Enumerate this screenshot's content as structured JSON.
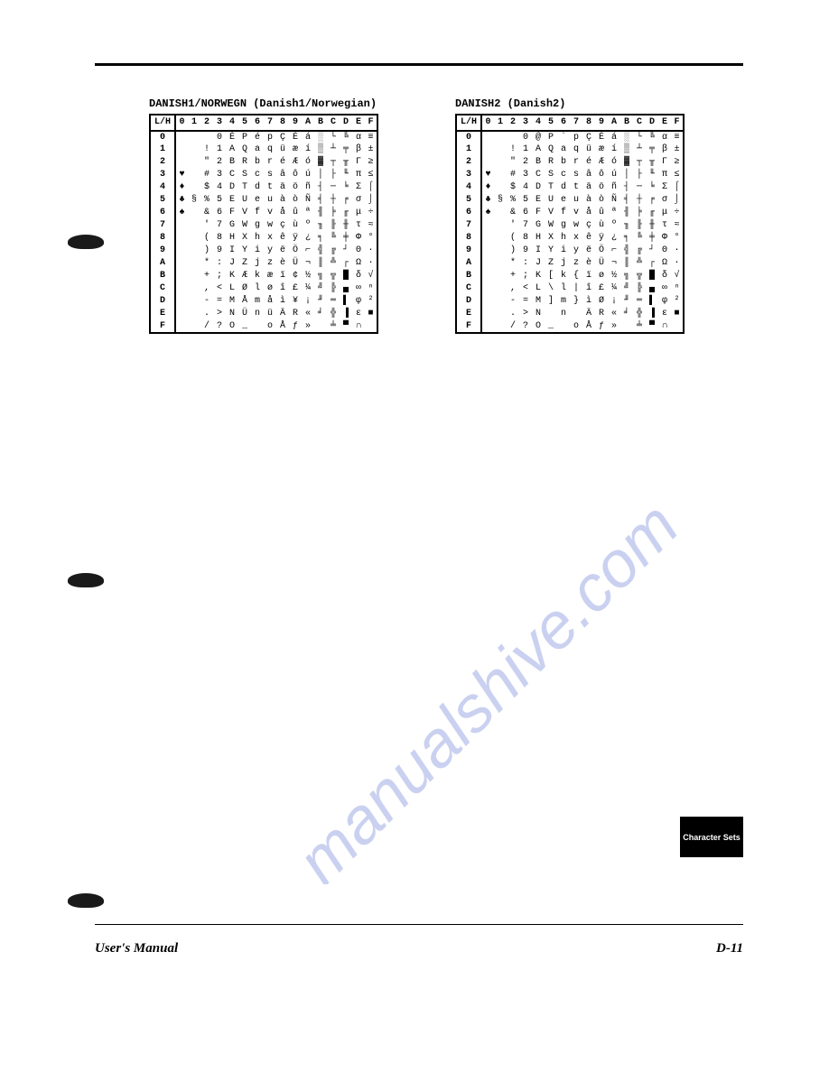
{
  "page": {
    "footer_left": "User's Manual",
    "footer_right": "D-11",
    "side_tab": "Character Sets",
    "watermark_text": "manualshive.com"
  },
  "charset1": {
    "title": "DANISH1/NORWEGN (Danish1/Norwegian)",
    "lh_label": "L/H",
    "cols": [
      "0",
      "1",
      "2",
      "3",
      "4",
      "5",
      "6",
      "7",
      "8",
      "9",
      "A",
      "B",
      "C",
      "D",
      "E",
      "F"
    ],
    "rows": [
      "0",
      "1",
      "2",
      "3",
      "4",
      "5",
      "6",
      "7",
      "8",
      "9",
      "A",
      "B",
      "C",
      "D",
      "E",
      "F"
    ],
    "grid": [
      [
        " ",
        " ",
        " ",
        "0",
        "É",
        "P",
        "é",
        "p",
        "Ç",
        "É",
        "á",
        "░",
        "└",
        "╚",
        "α",
        "≡"
      ],
      [
        " ",
        " ",
        "!",
        "1",
        "A",
        "Q",
        "a",
        "q",
        "ü",
        "æ",
        "í",
        "▒",
        "┴",
        "╤",
        "β",
        "±"
      ],
      [
        " ",
        " ",
        "\"",
        "2",
        "B",
        "R",
        "b",
        "r",
        "é",
        "Æ",
        "ó",
        "▓",
        "┬",
        "╥",
        "Γ",
        "≥"
      ],
      [
        "♥",
        " ",
        "#",
        "3",
        "C",
        "S",
        "c",
        "s",
        "â",
        "ô",
        "ú",
        "│",
        "├",
        "╙",
        "π",
        "≤"
      ],
      [
        "♦",
        " ",
        "$",
        "4",
        "D",
        "T",
        "d",
        "t",
        "ä",
        "ö",
        "ñ",
        "┤",
        "─",
        "╘",
        "Σ",
        "⌠"
      ],
      [
        "♣",
        "§",
        "%",
        "5",
        "E",
        "U",
        "e",
        "u",
        "à",
        "ò",
        "Ñ",
        "╡",
        "┼",
        "╒",
        "σ",
        "⌡"
      ],
      [
        "♠",
        " ",
        "&",
        "6",
        "F",
        "V",
        "f",
        "v",
        "å",
        "û",
        "ª",
        "╢",
        "╞",
        "╓",
        "μ",
        "÷"
      ],
      [
        " ",
        " ",
        "'",
        "7",
        "G",
        "W",
        "g",
        "w",
        "ç",
        "ù",
        "º",
        "╖",
        "╟",
        "╫",
        "τ",
        "≈"
      ],
      [
        " ",
        " ",
        "(",
        "8",
        "H",
        "X",
        "h",
        "x",
        "ê",
        "ÿ",
        "¿",
        "╕",
        "╚",
        "╪",
        "Φ",
        "°"
      ],
      [
        " ",
        " ",
        ")",
        "9",
        "I",
        "Y",
        "i",
        "y",
        "ë",
        "Ö",
        "⌐",
        "╣",
        "╔",
        "┘",
        "Θ",
        "·"
      ],
      [
        " ",
        " ",
        "*",
        ":",
        "J",
        "Z",
        "j",
        "z",
        "è",
        "Ü",
        "¬",
        "║",
        "╩",
        "┌",
        "Ω",
        "·"
      ],
      [
        " ",
        " ",
        "+",
        ";",
        "K",
        "Æ",
        "k",
        "æ",
        "ï",
        "¢",
        "½",
        "╗",
        "╦",
        "█",
        "δ",
        "√"
      ],
      [
        " ",
        " ",
        ",",
        "<",
        "L",
        "Ø",
        "l",
        "ø",
        "î",
        "£",
        "¼",
        "╝",
        "╠",
        "▄",
        "∞",
        "ⁿ"
      ],
      [
        " ",
        " ",
        "-",
        "=",
        "M",
        "Å",
        "m",
        "å",
        "ì",
        "¥",
        "¡",
        "╜",
        "═",
        "▌",
        "φ",
        "²"
      ],
      [
        " ",
        " ",
        ".",
        ">",
        "N",
        "Ü",
        "n",
        "ü",
        "Ä",
        "R",
        "«",
        "╛",
        "╬",
        "▐",
        "ε",
        "■"
      ],
      [
        " ",
        " ",
        "/",
        "?",
        "O",
        "_",
        " ",
        "o",
        "Å",
        "ƒ",
        "»",
        " ",
        "╧",
        "▀",
        "∩",
        " "
      ]
    ]
  },
  "charset2": {
    "title": "DANISH2 (Danish2)",
    "lh_label": "L/H",
    "cols": [
      "0",
      "1",
      "2",
      "3",
      "4",
      "5",
      "6",
      "7",
      "8",
      "9",
      "A",
      "B",
      "C",
      "D",
      "E",
      "F"
    ],
    "rows": [
      "0",
      "1",
      "2",
      "3",
      "4",
      "5",
      "6",
      "7",
      "8",
      "9",
      "A",
      "B",
      "C",
      "D",
      "E",
      "F"
    ],
    "grid": [
      [
        " ",
        " ",
        " ",
        "0",
        "@",
        "P",
        "`",
        "p",
        "Ç",
        "É",
        "á",
        "░",
        "└",
        "╚",
        "α",
        "≡"
      ],
      [
        " ",
        " ",
        "!",
        "1",
        "A",
        "Q",
        "a",
        "q",
        "ü",
        "æ",
        "í",
        "▒",
        "┴",
        "╤",
        "β",
        "±"
      ],
      [
        " ",
        " ",
        "\"",
        "2",
        "B",
        "R",
        "b",
        "r",
        "é",
        "Æ",
        "ó",
        "▓",
        "┬",
        "╥",
        "Γ",
        "≥"
      ],
      [
        "♥",
        " ",
        "#",
        "3",
        "C",
        "S",
        "c",
        "s",
        "â",
        "ô",
        "ú",
        "│",
        "├",
        "╙",
        "π",
        "≤"
      ],
      [
        "♦",
        " ",
        "$",
        "4",
        "D",
        "T",
        "d",
        "t",
        "ä",
        "ö",
        "ñ",
        "┤",
        "─",
        "╘",
        "Σ",
        "⌠"
      ],
      [
        "♣",
        "§",
        "%",
        "5",
        "E",
        "U",
        "e",
        "u",
        "à",
        "ò",
        "Ñ",
        "╡",
        "┼",
        "╒",
        "σ",
        "⌡"
      ],
      [
        "♠",
        " ",
        "&",
        "6",
        "F",
        "V",
        "f",
        "v",
        "å",
        "û",
        "ª",
        "╢",
        "╞",
        "╓",
        "μ",
        "÷"
      ],
      [
        " ",
        " ",
        "'",
        "7",
        "G",
        "W",
        "g",
        "w",
        "ç",
        "ù",
        "º",
        "╖",
        "╟",
        "╫",
        "τ",
        "≈"
      ],
      [
        " ",
        " ",
        "(",
        "8",
        "H",
        "X",
        "h",
        "x",
        "ê",
        "ÿ",
        "¿",
        "╕",
        "╚",
        "╪",
        "Φ",
        "°"
      ],
      [
        " ",
        " ",
        ")",
        "9",
        "I",
        "Y",
        "i",
        "y",
        "ë",
        "Ö",
        "⌐",
        "╣",
        "╔",
        "┘",
        "Θ",
        "·"
      ],
      [
        " ",
        " ",
        "*",
        ":",
        "J",
        "Z",
        "j",
        "z",
        "è",
        "Ü",
        "¬",
        "║",
        "╩",
        "┌",
        "Ω",
        "·"
      ],
      [
        " ",
        " ",
        "+",
        ";",
        "K",
        "[",
        "k",
        "{",
        "ï",
        "ø",
        "½",
        "╗",
        "╦",
        "█",
        "δ",
        "√"
      ],
      [
        " ",
        " ",
        ",",
        "<",
        "L",
        "\\",
        "l",
        "|",
        "î",
        "£",
        "¼",
        "╝",
        "╠",
        "▄",
        "∞",
        "ⁿ"
      ],
      [
        " ",
        " ",
        "-",
        "=",
        "M",
        "]",
        "m",
        "}",
        "ì",
        "Ø",
        "¡",
        "╜",
        "═",
        "▌",
        "φ",
        "²"
      ],
      [
        " ",
        " ",
        ".",
        ">",
        "N",
        " ",
        "n",
        " ",
        "Ä",
        "R",
        "«",
        "╛",
        "╬",
        "▐",
        "ε",
        "■"
      ],
      [
        " ",
        " ",
        "/",
        "?",
        "O",
        "_",
        " ",
        "o",
        "Å",
        "ƒ",
        "»",
        " ",
        "╧",
        "▀",
        "∩",
        " "
      ]
    ]
  }
}
